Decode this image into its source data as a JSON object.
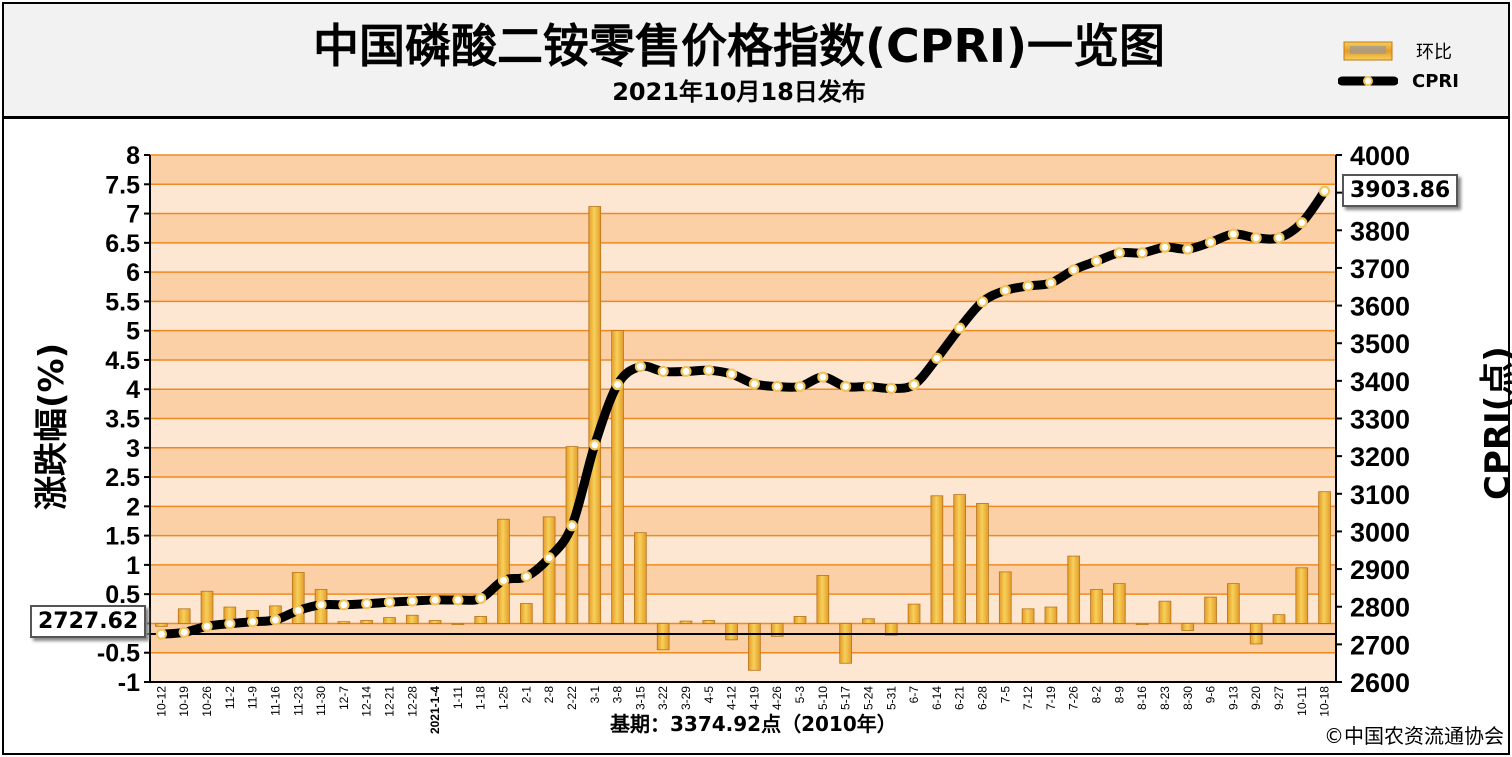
{
  "header": {
    "title": "中国磷酸二铵零售价格指数(CPRI)一览图",
    "subtitle": "2021年10月18日发布",
    "legend": [
      {
        "label": "环比",
        "type": "bar"
      },
      {
        "label": "CPRI",
        "type": "line"
      }
    ]
  },
  "footer": {
    "basis": "基期：3374.92点（2010年）",
    "copyright": "©中国农资流通协会"
  },
  "callouts": {
    "start": "2727.62",
    "end": "3903.86"
  },
  "colors": {
    "bar": "#e59a2a",
    "bar_highlight": "#f6d15a",
    "band_dark": "#fbd0a6",
    "band_light": "#fde6d2",
    "grid": "#f08a20",
    "line": "#000000",
    "marker": "#f2c45a"
  },
  "chart_data": {
    "type": "bar",
    "xlabel": "",
    "ylabel": "涨跌幅(%)",
    "ylabel_right": "CPRI(点)",
    "ylim": [
      -1,
      8
    ],
    "y2lim": [
      2600,
      4000
    ],
    "yticks": [
      "8",
      "7.5",
      "7",
      "6.5",
      "6",
      "5.5",
      "5",
      "4.5",
      "4",
      "3.5",
      "3",
      "2.5",
      "2",
      "1.5",
      "1",
      "0.5",
      "0",
      "-0.5",
      "-1"
    ],
    "y2ticks": [
      "4000",
      "3900",
      "3800",
      "3700",
      "3600",
      "3500",
      "3400",
      "3300",
      "3200",
      "3100",
      "3000",
      "2900",
      "2800",
      "2700",
      "2600"
    ],
    "year_label": "2021-1-4",
    "categories": [
      "10-12",
      "10-19",
      "10-26",
      "11-2",
      "11-9",
      "11-16",
      "11-23",
      "11-30",
      "12-7",
      "12-14",
      "12-21",
      "12-28",
      "1-4",
      "1-11",
      "1-18",
      "1-25",
      "2-1",
      "2-8",
      "2-22",
      "3-1",
      "3-8",
      "3-15",
      "3-22",
      "3-29",
      "4-5",
      "4-12",
      "4-19",
      "4-26",
      "5-3",
      "5-10",
      "5-17",
      "5-24",
      "5-31",
      "6-7",
      "6-14",
      "6-21",
      "6-28",
      "7-5",
      "7-12",
      "7-19",
      "7-26",
      "8-2",
      "8-9",
      "8-16",
      "8-23",
      "8-30",
      "9-6",
      "9-13",
      "9-20",
      "9-27",
      "10-11",
      "10-18"
    ],
    "series": [
      {
        "name": "环比",
        "type": "bar",
        "axis": "left",
        "values": [
          -0.05,
          0.25,
          0.55,
          0.28,
          0.22,
          0.3,
          0.87,
          0.58,
          0.03,
          0.05,
          0.1,
          0.14,
          0.05,
          -0.02,
          0.12,
          1.78,
          0.34,
          1.82,
          3.02,
          7.12,
          5.0,
          1.55,
          -0.45,
          0.04,
          0.05,
          -0.28,
          -0.8,
          -0.22,
          0.12,
          0.82,
          -0.68,
          0.08,
          -0.2,
          0.33,
          2.18,
          2.2,
          2.05,
          0.88,
          0.25,
          0.28,
          1.15,
          0.58,
          0.68,
          -0.02,
          0.38,
          -0.12,
          0.45,
          0.68,
          -0.35,
          0.15,
          0.95,
          2.25
        ]
      },
      {
        "name": "CPRI",
        "type": "line",
        "axis": "right",
        "values": [
          2727,
          2732,
          2748,
          2755,
          2760,
          2765,
          2790,
          2805,
          2805,
          2808,
          2812,
          2815,
          2818,
          2818,
          2822,
          2870,
          2880,
          2930,
          3015,
          3230,
          3390,
          3438,
          3425,
          3425,
          3428,
          3418,
          3392,
          3385,
          3385,
          3410,
          3385,
          3385,
          3380,
          3390,
          3460,
          3540,
          3610,
          3640,
          3652,
          3660,
          3695,
          3718,
          3740,
          3740,
          3755,
          3750,
          3768,
          3790,
          3780,
          3780,
          3820,
          3903.86
        ]
      }
    ],
    "grid": true,
    "legend_position": "top-right"
  }
}
